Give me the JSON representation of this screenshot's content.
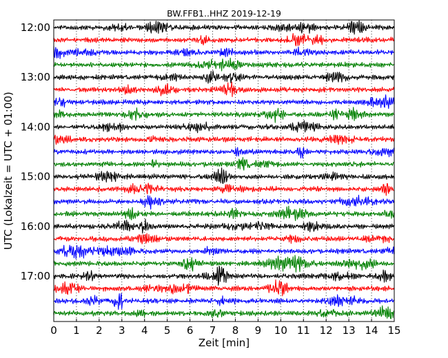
{
  "chart_data": {
    "type": "line",
    "title": "BW.FFB1..HHZ 2019-12-19",
    "xlabel": "Zeit  [min]",
    "ylabel": "UTC (Lokalzeit = UTC + 01:00)",
    "xlim": [
      0,
      15
    ],
    "x_ticks": [
      "0",
      "1",
      "2",
      "3",
      "4",
      "5",
      "6",
      "7",
      "8",
      "9",
      "10",
      "11",
      "12",
      "13",
      "14",
      "15"
    ],
    "y_ticks": [
      "12:00",
      "13:00",
      "14:00",
      "15:00",
      "16:00",
      "17:00"
    ],
    "trace_start_times": [
      "12:00",
      "12:15",
      "12:30",
      "12:45",
      "13:00",
      "13:15",
      "13:30",
      "13:45",
      "14:00",
      "14:15",
      "14:30",
      "14:45",
      "15:00",
      "15:15",
      "15:30",
      "15:45",
      "16:00",
      "16:15",
      "16:30",
      "16:45",
      "17:00",
      "17:15",
      "17:30",
      "17:45"
    ],
    "trace_colors": [
      "#000000",
      "#ff0000",
      "#0000ff",
      "#008000"
    ],
    "grid": "vertical dotted at each minute"
  }
}
